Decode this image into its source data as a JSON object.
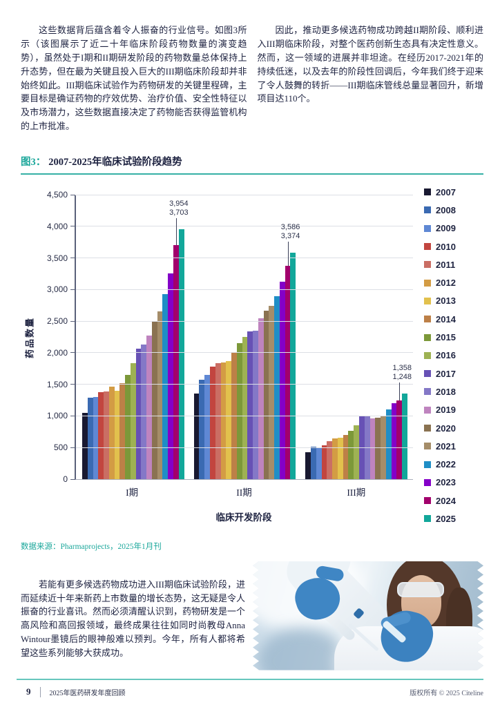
{
  "page": {
    "paragraph_left": "这些数据背后蕴含着令人振奋的行业信号。如图3所示（该图展示了近二十年临床阶段药物数量的演变趋势），虽然处于I期和II期研发阶段的药物数量总体保持上升态势，但在最为关键且投入巨大的III期临床阶段却并非始终如此。III期临床试验作为药物研发的关键里程碑，主要目标是确证药物的疗效优势、治疗价值、安全性特征以及市场潜力，这些数据直接决定了药物能否获得监管机构的上市批准。",
    "paragraph_right": "因此，推动更多候选药物成功跨越II期阶段、顺利进入III期临床阶段，对整个医药创新生态具有决定性意义。然而，这一领域的进展并非坦途。在经历2017-2021年的持续低迷，以及去年的阶段性回调后，今年我们终于迎来了令人鼓舞的转折——III期临床管线总量显著回升，新增项目达110个。",
    "paragraph_bottom": "若能有更多候选药物成功进入III期临床试验阶段，进而延续近十年来新药上市数量的增长态势，这无疑是令人振奋的行业喜讯。然而必须清醒认识到，药物研发是一个高风险和高回报领域，最终成果往往如同时尚教母Anna Wintour墨镜后的眼神般难以预判。今年，所有人都将希望这些系列能够大获成功。"
  },
  "figure": {
    "label": "图3：",
    "title": "2007-2025年临床试验阶段趋势",
    "source": "数据来源：Pharmaprojects，2025年1月刊"
  },
  "chart_data": {
    "type": "bar",
    "title": "图3：2007-2025年临床试验阶段趋势",
    "xlabel": "临床开发阶段",
    "ylabel": "药品数量",
    "ylim": [
      0,
      4500
    ],
    "ytick_step": 500,
    "grid": true,
    "legend_position": "right",
    "categories": [
      "I期",
      "II期",
      "III期"
    ],
    "series": [
      {
        "name": "2007",
        "color": "#191931",
        "values": [
          1050,
          1360,
          430
        ]
      },
      {
        "name": "2008",
        "color": "#3a6ab2",
        "values": [
          1290,
          1570,
          510
        ]
      },
      {
        "name": "2009",
        "color": "#5f88d4",
        "values": [
          1300,
          1650,
          500
        ]
      },
      {
        "name": "2010",
        "color": "#c2453f",
        "values": [
          1380,
          1780,
          540
        ]
      },
      {
        "name": "2011",
        "color": "#ca6e64",
        "values": [
          1390,
          1830,
          600
        ]
      },
      {
        "name": "2012",
        "color": "#d39c44",
        "values": [
          1460,
          1850,
          650
        ]
      },
      {
        "name": "2013",
        "color": "#e2c14d",
        "values": [
          1400,
          1870,
          660
        ]
      },
      {
        "name": "2014",
        "color": "#bd8047",
        "values": [
          1520,
          2000,
          700
        ]
      },
      {
        "name": "2015",
        "color": "#7c9839",
        "values": [
          1650,
          2150,
          760
        ]
      },
      {
        "name": "2016",
        "color": "#9eb253",
        "values": [
          1840,
          2250,
          850
        ]
      },
      {
        "name": "2017",
        "color": "#6751b5",
        "values": [
          2060,
          2340,
          1000
        ]
      },
      {
        "name": "2018",
        "color": "#8478c7",
        "values": [
          2130,
          2350,
          990
        ]
      },
      {
        "name": "2019",
        "color": "#bf84bf",
        "values": [
          2270,
          2550,
          960
        ]
      },
      {
        "name": "2020",
        "color": "#8a7251",
        "values": [
          2490,
          2670,
          970
        ]
      },
      {
        "name": "2021",
        "color": "#a58d69",
        "values": [
          2650,
          2740,
          1010
        ]
      },
      {
        "name": "2022",
        "color": "#1f8ec6",
        "values": [
          2930,
          2900,
          1100
        ]
      },
      {
        "name": "2023",
        "color": "#8400c8",
        "values": [
          3260,
          3120,
          1200
        ]
      },
      {
        "name": "2024",
        "color": "#a2006c",
        "values": [
          3703,
          3374,
          1248
        ]
      },
      {
        "name": "2025",
        "color": "#12a79a",
        "values": [
          3954,
          3586,
          1358
        ]
      }
    ],
    "annotations": [
      {
        "category": "I期",
        "labels": {
          "2025": "3,954",
          "2024": "3,703"
        }
      },
      {
        "category": "II期",
        "labels": {
          "2025": "3,586",
          "2024": "3,374"
        }
      },
      {
        "category": "III期",
        "labels": {
          "2025": "1,358",
          "2024": "1,248"
        }
      }
    ]
  },
  "photo": {
    "description": "实验室中佩戴护目镜与蓝色手套、手持移液器的科研人员"
  },
  "footer": {
    "page_number": "9",
    "doc_title": "2025年医药研发年度回顾",
    "copyright": "版权所有 © 2025 Citeline"
  },
  "colors": {
    "accent_teal": "#1ba79b",
    "rule_teal": "#35b0a5",
    "footer_rule_teal": "#66c6bd",
    "navy_text": "#1d2240",
    "gridline": "#dcdfe5",
    "axis_line": "#596079"
  }
}
